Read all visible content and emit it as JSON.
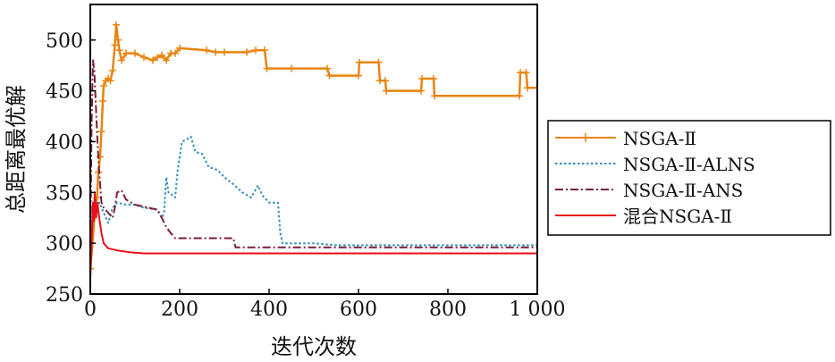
{
  "chart_data": {
    "type": "line",
    "xlabel": "迭代次数",
    "ylabel": "总距离最优解",
    "xlim": [
      0,
      1000
    ],
    "ylim": [
      250,
      535
    ],
    "x_ticks": [
      0,
      200,
      400,
      600,
      800,
      1000
    ],
    "x_tick_labels": [
      "0",
      "200",
      "400",
      "600",
      "800",
      "1 000"
    ],
    "y_ticks": [
      250,
      300,
      350,
      400,
      450,
      500
    ],
    "y_tick_labels": [
      "250",
      "300",
      "350",
      "400",
      "450",
      "500"
    ],
    "grid": false,
    "legend_position": "right",
    "series": [
      {
        "name": "NSGA-Ⅱ",
        "color": "#e8840f",
        "style": "solid-plus",
        "points": [
          [
            0,
            275
          ],
          [
            5,
            300
          ],
          [
            10,
            330
          ],
          [
            15,
            345
          ],
          [
            18,
            370
          ],
          [
            22,
            385
          ],
          [
            25,
            410
          ],
          [
            28,
            440
          ],
          [
            30,
            455
          ],
          [
            35,
            460
          ],
          [
            40,
            462
          ],
          [
            45,
            460
          ],
          [
            50,
            470
          ],
          [
            55,
            495
          ],
          [
            58,
            515
          ],
          [
            62,
            500
          ],
          [
            65,
            490
          ],
          [
            70,
            480
          ],
          [
            80,
            487
          ],
          [
            100,
            487
          ],
          [
            120,
            483
          ],
          [
            140,
            480
          ],
          [
            150,
            483
          ],
          [
            160,
            485
          ],
          [
            170,
            480
          ],
          [
            180,
            487
          ],
          [
            190,
            487
          ],
          [
            200,
            492
          ],
          [
            260,
            490
          ],
          [
            280,
            488
          ],
          [
            300,
            488
          ],
          [
            350,
            488
          ],
          [
            370,
            490
          ],
          [
            390,
            490
          ],
          [
            395,
            472
          ],
          [
            450,
            472
          ],
          [
            530,
            472
          ],
          [
            535,
            465
          ],
          [
            600,
            465
          ],
          [
            602,
            478
          ],
          [
            645,
            478
          ],
          [
            648,
            460
          ],
          [
            660,
            460
          ],
          [
            662,
            450
          ],
          [
            740,
            450
          ],
          [
            742,
            462
          ],
          [
            768,
            462
          ],
          [
            770,
            445
          ],
          [
            960,
            445
          ],
          [
            962,
            468
          ],
          [
            975,
            468
          ],
          [
            978,
            453
          ],
          [
            1000,
            453
          ]
        ]
      },
      {
        "name": "NSGA-Ⅱ-ALNS",
        "color": "#2e8fb8",
        "style": "dotted",
        "points": [
          [
            0,
            280
          ],
          [
            5,
            320
          ],
          [
            10,
            345
          ],
          [
            15,
            335
          ],
          [
            20,
            340
          ],
          [
            30,
            330
          ],
          [
            40,
            320
          ],
          [
            50,
            335
          ],
          [
            60,
            340
          ],
          [
            80,
            338
          ],
          [
            100,
            338
          ],
          [
            120,
            335
          ],
          [
            150,
            333
          ],
          [
            160,
            325
          ],
          [
            165,
            330
          ],
          [
            170,
            365
          ],
          [
            175,
            350
          ],
          [
            190,
            345
          ],
          [
            195,
            370
          ],
          [
            200,
            385
          ],
          [
            205,
            400
          ],
          [
            215,
            402
          ],
          [
            225,
            405
          ],
          [
            235,
            390
          ],
          [
            250,
            388
          ],
          [
            265,
            375
          ],
          [
            285,
            372
          ],
          [
            300,
            365
          ],
          [
            320,
            358
          ],
          [
            340,
            350
          ],
          [
            360,
            345
          ],
          [
            375,
            357
          ],
          [
            385,
            347
          ],
          [
            400,
            340
          ],
          [
            420,
            340
          ],
          [
            425,
            310
          ],
          [
            430,
            300
          ],
          [
            500,
            300
          ],
          [
            550,
            298
          ],
          [
            1000,
            298
          ]
        ]
      },
      {
        "name": "NSGA-Ⅱ-ANS",
        "color": "#7a1e3a",
        "style": "dashdot",
        "points": [
          [
            0,
            300
          ],
          [
            3,
            420
          ],
          [
            6,
            480
          ],
          [
            9,
            470
          ],
          [
            12,
            440
          ],
          [
            16,
            400
          ],
          [
            20,
            370
          ],
          [
            25,
            340
          ],
          [
            30,
            335
          ],
          [
            40,
            330
          ],
          [
            50,
            325
          ],
          [
            55,
            335
          ],
          [
            60,
            350
          ],
          [
            70,
            352
          ],
          [
            80,
            343
          ],
          [
            100,
            338
          ],
          [
            150,
            333
          ],
          [
            160,
            325
          ],
          [
            170,
            316
          ],
          [
            180,
            310
          ],
          [
            190,
            305
          ],
          [
            200,
            305
          ],
          [
            320,
            305
          ],
          [
            325,
            296
          ],
          [
            1000,
            296
          ]
        ]
      },
      {
        "name": "混合NSGA-Ⅱ",
        "color": "#e8111a",
        "style": "solid",
        "points": [
          [
            0,
            265
          ],
          [
            3,
            300
          ],
          [
            6,
            340
          ],
          [
            8,
            322
          ],
          [
            10,
            350
          ],
          [
            13,
            325
          ],
          [
            16,
            340
          ],
          [
            20,
            325
          ],
          [
            25,
            310
          ],
          [
            30,
            300
          ],
          [
            40,
            295
          ],
          [
            60,
            293
          ],
          [
            90,
            291
          ],
          [
            120,
            290
          ],
          [
            1000,
            290
          ]
        ]
      }
    ]
  }
}
